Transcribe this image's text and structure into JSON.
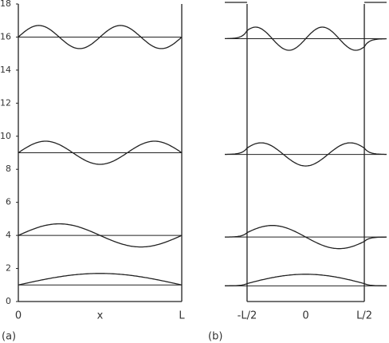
{
  "chart_data": [
    {
      "type": "wells",
      "panel_label": "(a)",
      "xlabel": "x",
      "xlim": [
        0,
        1
      ],
      "xticks": [
        0,
        {
          "value": 1,
          "label": "L"
        }
      ],
      "ylim": [
        0,
        18
      ],
      "yticks": [
        0,
        2,
        4,
        6,
        8,
        10,
        12,
        14,
        16,
        18
      ],
      "levels": [
        1,
        4,
        9,
        16
      ]
    },
    {
      "type": "finite",
      "panel_label": "(b)",
      "xlim": [
        -0.69,
        0.69
      ],
      "xticks": [
        {
          "value": -0.5,
          "label": "-L/2"
        },
        0,
        {
          "value": 0.5,
          "label": "L/2"
        }
      ],
      "ylim": [
        0,
        18
      ],
      "levels": [
        0.95,
        3.9,
        8.9,
        15.9
      ]
    }
  ]
}
